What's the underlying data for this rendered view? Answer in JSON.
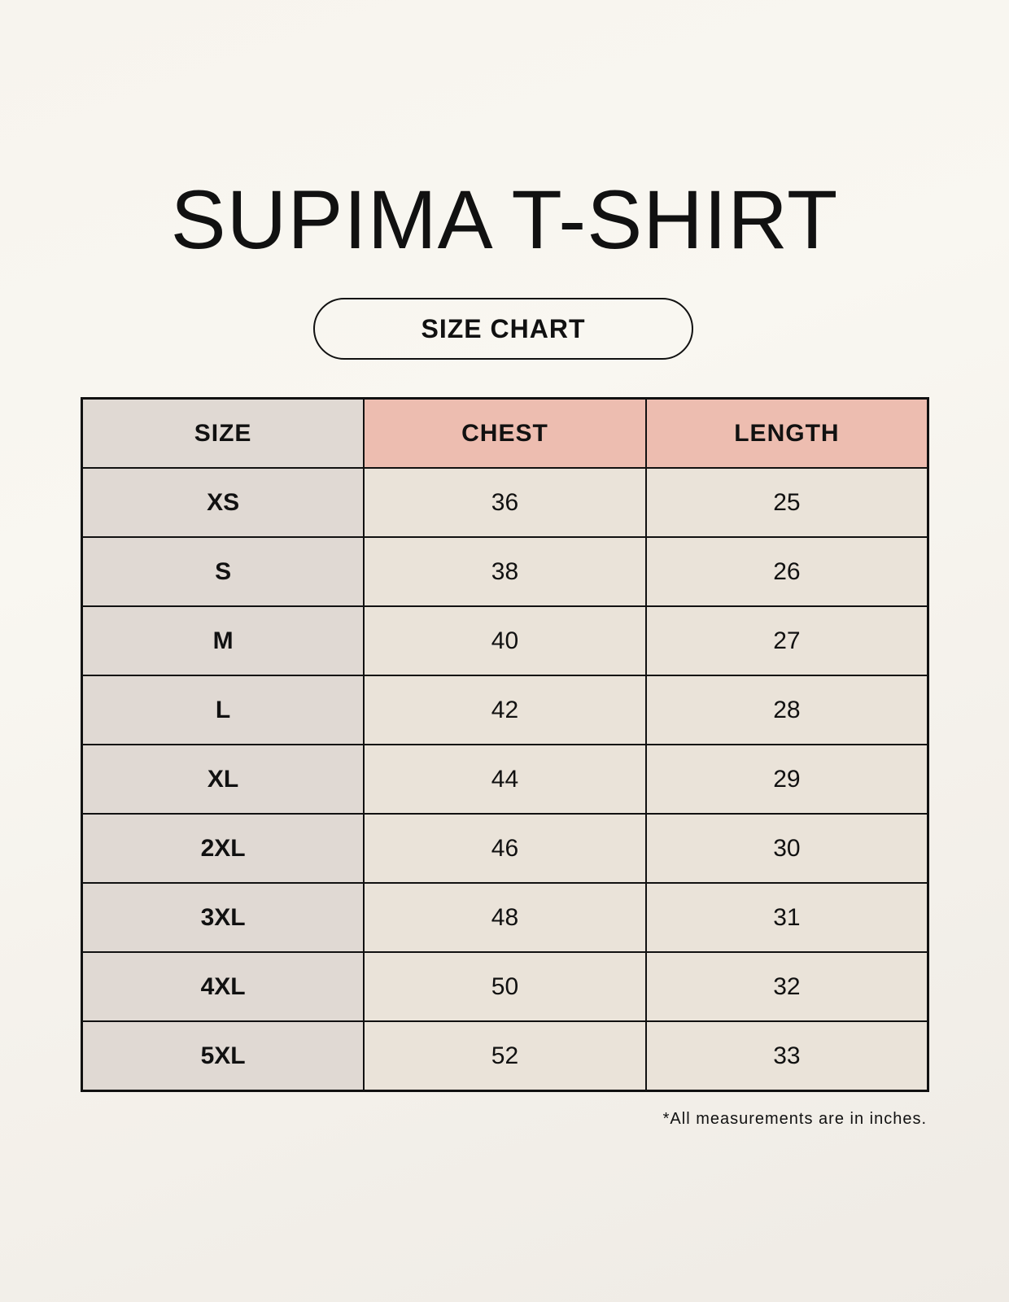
{
  "title": "SUPIMA T-SHIRT",
  "subtitle": "SIZE CHART",
  "table": {
    "headers": [
      "SIZE",
      "CHEST",
      "LENGTH"
    ],
    "rows": [
      [
        "XS",
        "36",
        "25"
      ],
      [
        "S",
        "38",
        "26"
      ],
      [
        "M",
        "40",
        "27"
      ],
      [
        "L",
        "42",
        "28"
      ],
      [
        "XL",
        "44",
        "29"
      ],
      [
        "2XL",
        "46",
        "30"
      ],
      [
        "3XL",
        "48",
        "31"
      ],
      [
        "4XL",
        "50",
        "32"
      ],
      [
        "5XL",
        "52",
        "33"
      ]
    ]
  },
  "footnote": "*All measurements are in inches.",
  "colors": {
    "size_column": "#e0d9d3",
    "header_accent": "#edbdb0",
    "value_cells": "#eae3d9"
  }
}
